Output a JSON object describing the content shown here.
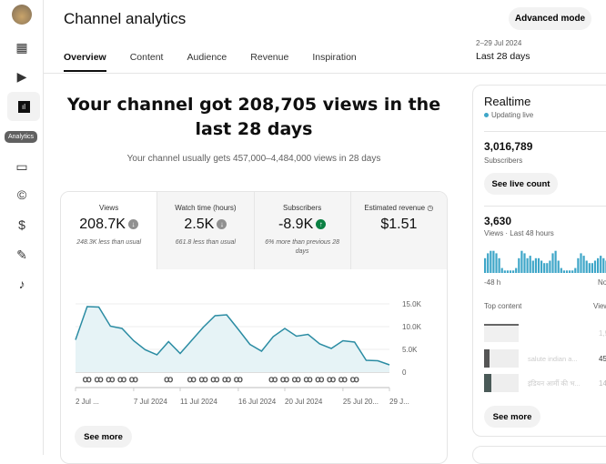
{
  "header": {
    "title": "Channel analytics",
    "advanced_mode": "Advanced mode",
    "date_range": "2–29 Jul 2024",
    "period": "Last 28 days"
  },
  "sidebar": {
    "items": [
      {
        "icon": "dashboard-icon"
      },
      {
        "icon": "content-icon"
      },
      {
        "icon": "analytics-icon",
        "tooltip": "Analytics"
      },
      {
        "icon": "subtitles-icon"
      },
      {
        "icon": "copyright-icon"
      },
      {
        "icon": "earn-icon"
      },
      {
        "icon": "customization-icon"
      },
      {
        "icon": "audio-library-icon"
      }
    ]
  },
  "tabs": [
    "Overview",
    "Content",
    "Audience",
    "Revenue",
    "Inspiration"
  ],
  "headline": "Your channel got 208,705 views in the last 28 days",
  "subline": "Your channel usually gets 457,000–4,484,000 views in 28 days",
  "metrics": [
    {
      "label": "Views",
      "value": "208.7K",
      "trend": "down",
      "note": "248.3K less than usual"
    },
    {
      "label": "Watch time (hours)",
      "value": "2.5K",
      "trend": "down",
      "note": "661.8 less than usual"
    },
    {
      "label": "Subscribers",
      "value": "-8.9K",
      "trend": "up",
      "note": "6% more than previous 28 days"
    },
    {
      "label": "Estimated revenue",
      "value": "$1.51",
      "trend": "",
      "note": ""
    }
  ],
  "see_more": "See more",
  "chart_data": {
    "type": "area",
    "title": "Views",
    "x": [
      "2 Jul",
      "3 Jul",
      "4 Jul",
      "5 Jul",
      "6 Jul",
      "7 Jul",
      "8 Jul",
      "9 Jul",
      "10 Jul",
      "11 Jul",
      "12 Jul",
      "13 Jul",
      "14 Jul",
      "15 Jul",
      "16 Jul",
      "17 Jul",
      "18 Jul",
      "19 Jul",
      "20 Jul",
      "21 Jul",
      "22 Jul",
      "23 Jul",
      "24 Jul",
      "25 Jul",
      "26 Jul",
      "27 Jul",
      "28 Jul",
      "29 Jul"
    ],
    "values": [
      7100,
      14400,
      14300,
      10100,
      9600,
      6900,
      4900,
      3800,
      6700,
      4100,
      7000,
      9900,
      12400,
      12600,
      9400,
      6100,
      4600,
      7800,
      9600,
      7900,
      8300,
      6200,
      5200,
      6900,
      6600,
      2600,
      2500,
      1600
    ],
    "shorts_published_days": [
      1,
      2,
      3,
      4,
      5,
      8,
      10,
      11,
      12,
      13,
      14,
      17,
      18,
      19,
      20,
      21,
      22,
      23,
      24
    ],
    "x_tick_labels": [
      {
        "i": 0,
        "label": "2 Jul ..."
      },
      {
        "i": 5,
        "label": "7 Jul 2024"
      },
      {
        "i": 9,
        "label": "11 Jul 2024"
      },
      {
        "i": 14,
        "label": "16 Jul 2024"
      },
      {
        "i": 18,
        "label": "20 Jul 2024"
      },
      {
        "i": 23,
        "label": "25 Jul 20..."
      },
      {
        "i": 27,
        "label": "29 J..."
      }
    ],
    "y_ticks": [
      {
        "v": 15000,
        "label": "15.0K"
      },
      {
        "v": 10000,
        "label": "10.0K"
      },
      {
        "v": 5000,
        "label": "5.0K"
      },
      {
        "v": 0,
        "label": "0"
      }
    ],
    "ylim": [
      0,
      15000
    ],
    "grid": true,
    "color": "#2b8ca3"
  },
  "realtime": {
    "title": "Realtime",
    "status": "Updating live",
    "subscribers": "3,016,789",
    "subscribers_label": "Subscribers",
    "live_count": "See live count",
    "views": "3,630",
    "views_label": "Views · Last 48 hours",
    "bars": [
      6,
      8,
      9,
      9,
      8,
      6,
      2,
      1,
      1,
      1,
      1,
      2,
      6,
      9,
      8,
      6,
      7,
      5,
      6,
      6,
      5,
      4,
      4,
      5,
      8,
      9,
      5,
      2,
      1,
      1,
      1,
      1,
      2,
      6,
      8,
      7,
      5,
      4,
      4,
      5,
      6,
      7,
      6,
      5,
      4,
      6,
      7,
      5
    ],
    "axis_start": "-48 h",
    "axis_end": "No",
    "top_content": "Top content",
    "views_col": "View",
    "items": [
      {
        "title": "",
        "views": "1,9"
      },
      {
        "title": "salute indian a...",
        "views": "45"
      },
      {
        "title": "इंडियन आर्मी की भ...",
        "views": "14"
      }
    ],
    "see_more": "See more"
  }
}
